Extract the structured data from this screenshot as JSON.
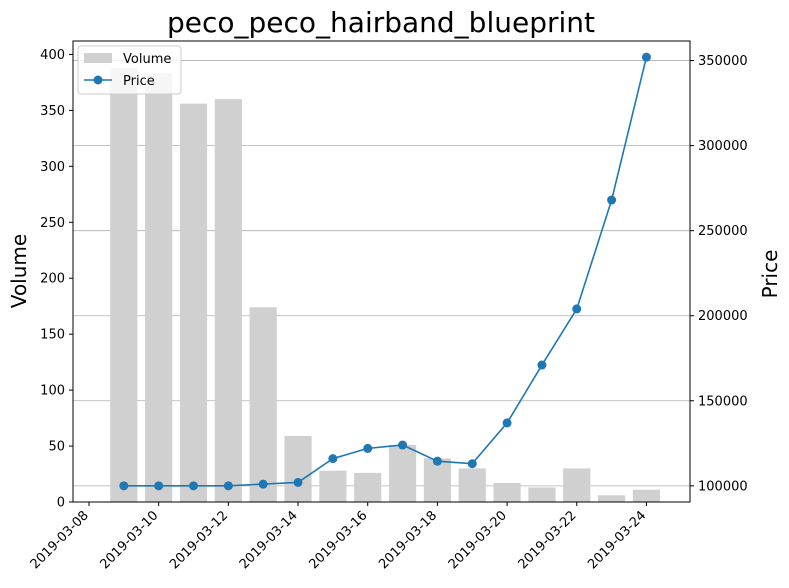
{
  "chart_data": {
    "type": "bar",
    "title": "peco_peco_hairband_blueprint",
    "ylabel": "Volume",
    "y2label": "Price",
    "x": [
      "2019-03-09",
      "2019-03-10",
      "2019-03-11",
      "2019-03-12",
      "2019-03-13",
      "2019-03-14",
      "2019-03-15",
      "2019-03-16",
      "2019-03-17",
      "2019-03-18",
      "2019-03-19",
      "2019-03-20",
      "2019-03-21",
      "2019-03-22",
      "2019-03-23",
      "2019-03-24"
    ],
    "series": [
      {
        "name": "Volume",
        "type": "bar",
        "axis": "left",
        "color": "#d0d0d0",
        "values": [
          388,
          383,
          356,
          360,
          174,
          59,
          28,
          26,
          51,
          39,
          30,
          17,
          13,
          30,
          6,
          11
        ]
      },
      {
        "name": "Price",
        "type": "line",
        "axis": "right",
        "color": "#1f77b4",
        "marker": "circle",
        "values": [
          100000,
          100000,
          100000,
          100000,
          101000,
          102000,
          116000,
          122000,
          124000,
          114500,
          113000,
          137000,
          171000,
          204000,
          268000,
          352000
        ]
      }
    ],
    "x_ticks": [
      "2019-03-08",
      "2019-03-10",
      "2019-03-12",
      "2019-03-14",
      "2019-03-16",
      "2019-03-18",
      "2019-03-20",
      "2019-03-22",
      "2019-03-24"
    ],
    "ylim": [
      0,
      412
    ],
    "y_ticks": [
      0,
      50,
      100,
      150,
      200,
      250,
      300,
      350,
      400
    ],
    "y2lim": [
      90500,
      361500
    ],
    "y2_ticks": [
      100000,
      150000,
      200000,
      250000,
      300000,
      350000
    ],
    "xlim": [
      "2019-03-07T13:00",
      "2019-03-25T06:00"
    ],
    "grid": "right-axis horizontal",
    "legend": "top-left"
  }
}
